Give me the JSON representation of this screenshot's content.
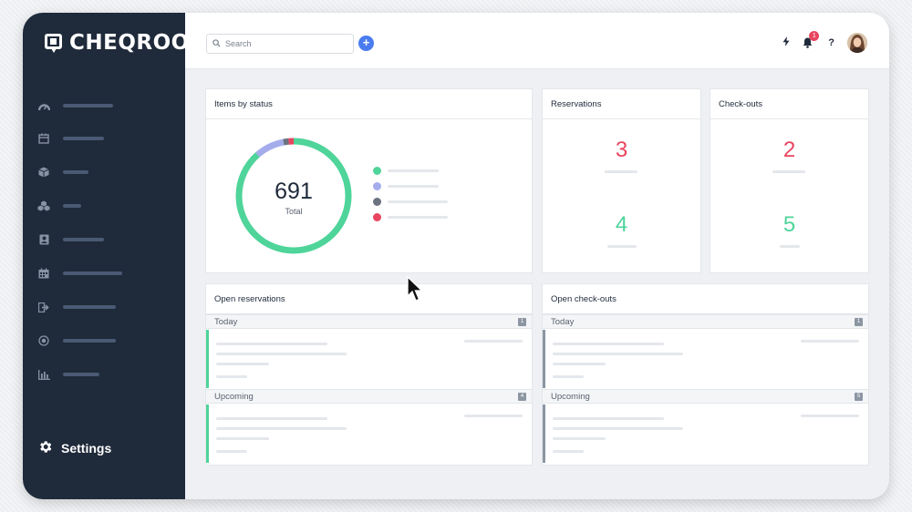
{
  "app": {
    "brand": "CHEQROOM",
    "settings_label": "Settings"
  },
  "colors": {
    "sidebar": "#1f2a3a",
    "accent_blue": "#4a7cf0",
    "available_green": "#4fd49a",
    "reserved_purple": "#a4acec",
    "checked_out_gray": "#6b7280",
    "overdue_red": "#e8455f"
  },
  "sidebar": {
    "items": [
      {
        "icon": "dashboard-icon"
      },
      {
        "icon": "calendar-icon"
      },
      {
        "icon": "box-icon"
      },
      {
        "icon": "kits-icon"
      },
      {
        "icon": "contacts-icon"
      },
      {
        "icon": "reservations-icon"
      },
      {
        "icon": "checkout-icon"
      },
      {
        "icon": "target-icon"
      },
      {
        "icon": "reports-icon"
      }
    ]
  },
  "topbar": {
    "search_placeholder": "Search",
    "add_label": "+",
    "notification_count": "1",
    "help_label": "?"
  },
  "items_by_status": {
    "title": "Items by status",
    "total": "691",
    "total_label": "Total"
  },
  "chart_data": {
    "type": "pie",
    "title": "Items by status",
    "values": [
      0.885,
      0.085,
      0.015,
      0.015
    ],
    "colors": [
      "#4fd49a",
      "#a4acec",
      "#6b7280",
      "#e8455f"
    ],
    "center_value": "691",
    "center_label": "Total"
  },
  "reservations": {
    "title": "Reservations",
    "value_top": "3",
    "value_bottom": "4"
  },
  "checkouts": {
    "title": "Check-outs",
    "value_top": "2",
    "value_bottom": "5"
  },
  "open_reservations": {
    "title": "Open reservations",
    "today_label": "Today",
    "today_count": "1",
    "upcoming_label": "Upcoming",
    "upcoming_count": "4"
  },
  "open_checkouts": {
    "title": "Open check-outs",
    "today_label": "Today",
    "today_count": "1",
    "upcoming_label": "Upcoming",
    "upcoming_count": "5"
  }
}
